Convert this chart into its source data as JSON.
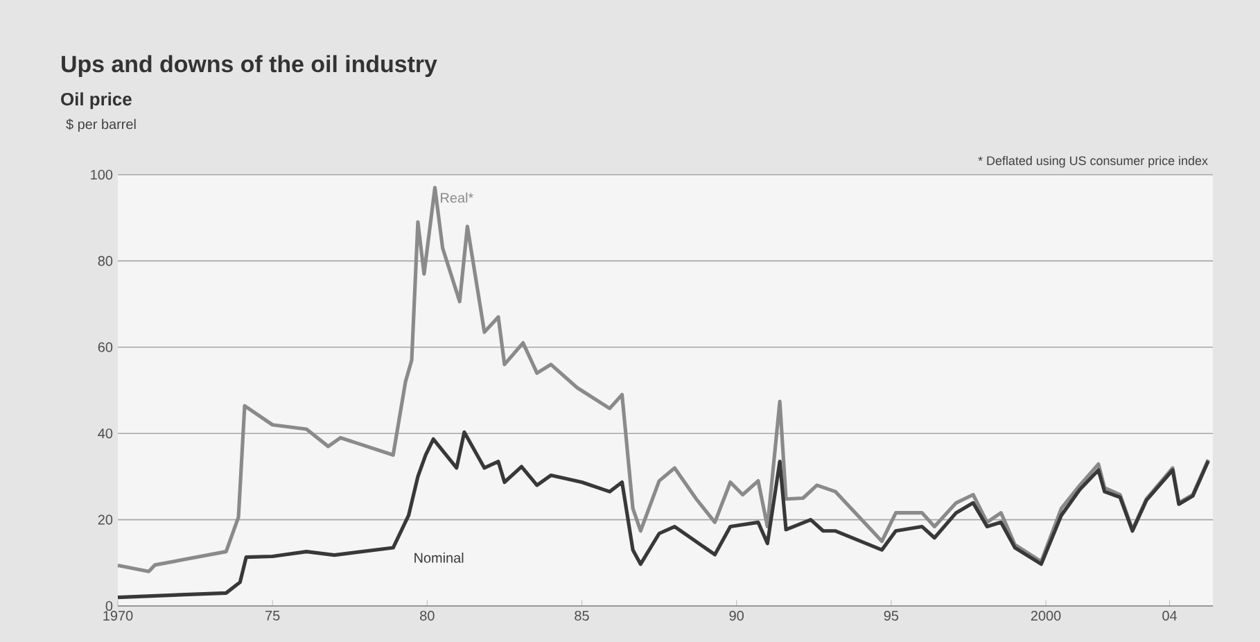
{
  "chart_data": {
    "type": "line",
    "title": "Ups and downs of the oil industry",
    "subtitle": "Oil price",
    "ylabel": "$ per barrel",
    "annotations": [
      "* Deflated using US consumer price index"
    ],
    "series": [
      {
        "name": "Real*",
        "color": "#8a8a8a",
        "x": [
          1970,
          1971,
          1971.2,
          1973.5,
          1973.9,
          1974.1,
          1975,
          1976.1,
          1976.8,
          1977.2,
          1978.9,
          1979.3,
          1979.5,
          1979.7,
          1979.9,
          1980.25,
          1980.5,
          1981.05,
          1981.3,
          1981.85,
          1982.3,
          1982.5,
          1983.1,
          1983.55,
          1984,
          1984.85,
          1985.9,
          1986.3,
          1986.65,
          1986.9,
          1987.5,
          1988,
          1988.7,
          1989.3,
          1989.8,
          1990.2,
          1990.7,
          1991,
          1991.4,
          1991.6,
          1992.15,
          1992.6,
          1993.2,
          1994.7,
          1995.15,
          1996,
          1996.4,
          1997.1,
          1997.65,
          1998.1,
          1998.55,
          1999,
          1999.85,
          2000.5,
          2001.1,
          2001.7,
          2001.9,
          2002.4,
          2002.8,
          2003.25,
          2004.1,
          2004.3,
          2004.75,
          2005.25
        ],
        "values": [
          9.4,
          8,
          9.5,
          12.6,
          20.6,
          46.4,
          42,
          41,
          37,
          39,
          35,
          52,
          57,
          89,
          77,
          97,
          83,
          70.6,
          88,
          63.5,
          67,
          56,
          61,
          54,
          56,
          50.6,
          45.8,
          49,
          22.6,
          17.4,
          29,
          32,
          24.8,
          19.4,
          28.7,
          25.8,
          29,
          18.4,
          47.4,
          24.8,
          25,
          28,
          26.5,
          15,
          21.6,
          21.6,
          18.4,
          23.9,
          25.8,
          19.4,
          21.6,
          14.2,
          10.3,
          22.6,
          28,
          32.9,
          27.4,
          25.8,
          17.7,
          24.8,
          32,
          23.9,
          25.8,
          33.9
        ]
      },
      {
        "name": "Nominal",
        "color": "#383838",
        "x": [
          1970,
          1973.5,
          1973.95,
          1974.15,
          1975,
          1976.1,
          1977,
          1978.9,
          1979.4,
          1979.7,
          1979.95,
          1980.2,
          1980.95,
          1981.2,
          1981.85,
          1982.3,
          1982.5,
          1983.05,
          1983.55,
          1984,
          1985,
          1985.9,
          1986.3,
          1986.65,
          1986.9,
          1987.5,
          1988,
          1989.3,
          1989.8,
          1990.7,
          1991,
          1991.4,
          1991.6,
          1992.4,
          1992.8,
          1993.2,
          1994.7,
          1995.15,
          1996,
          1996.4,
          1997.1,
          1997.65,
          1998.1,
          1998.55,
          1999,
          1999.85,
          2000.5,
          2001.1,
          2001.7,
          2001.9,
          2002.4,
          2002.8,
          2003.25,
          2004.1,
          2004.3,
          2004.75,
          2005.25
        ],
        "values": [
          2,
          3,
          5.5,
          11.3,
          11.5,
          12.6,
          11.8,
          13.5,
          21,
          30,
          35,
          38.7,
          32,
          40.3,
          32,
          33.5,
          28.7,
          32.3,
          28,
          30.3,
          28.7,
          26.5,
          28.7,
          13,
          9.7,
          16.8,
          18.4,
          11.9,
          18.4,
          19.4,
          14.5,
          33.5,
          17.7,
          20,
          17.4,
          17.4,
          13,
          17.4,
          18.4,
          15.8,
          21.6,
          23.9,
          18.4,
          19.4,
          13.5,
          9.7,
          21,
          27,
          31.5,
          26.5,
          25.2,
          17.4,
          24.5,
          31.5,
          23.6,
          25.5,
          33.6
        ]
      }
    ],
    "xlim": [
      1970,
      2005.4
    ],
    "ylim": [
      0,
      100
    ],
    "xticks": [
      {
        "value": 1970,
        "label": "1970"
      },
      {
        "value": 1975,
        "label": "75"
      },
      {
        "value": 1980,
        "label": "80"
      },
      {
        "value": 1985,
        "label": "85"
      },
      {
        "value": 1990,
        "label": "90"
      },
      {
        "value": 1995,
        "label": "95"
      },
      {
        "value": 2000,
        "label": "2000"
      },
      {
        "value": 2004,
        "label": "04"
      }
    ],
    "yticks": [
      0,
      20,
      40,
      60,
      80,
      100
    ],
    "grid": "y",
    "line_style": "solid"
  }
}
